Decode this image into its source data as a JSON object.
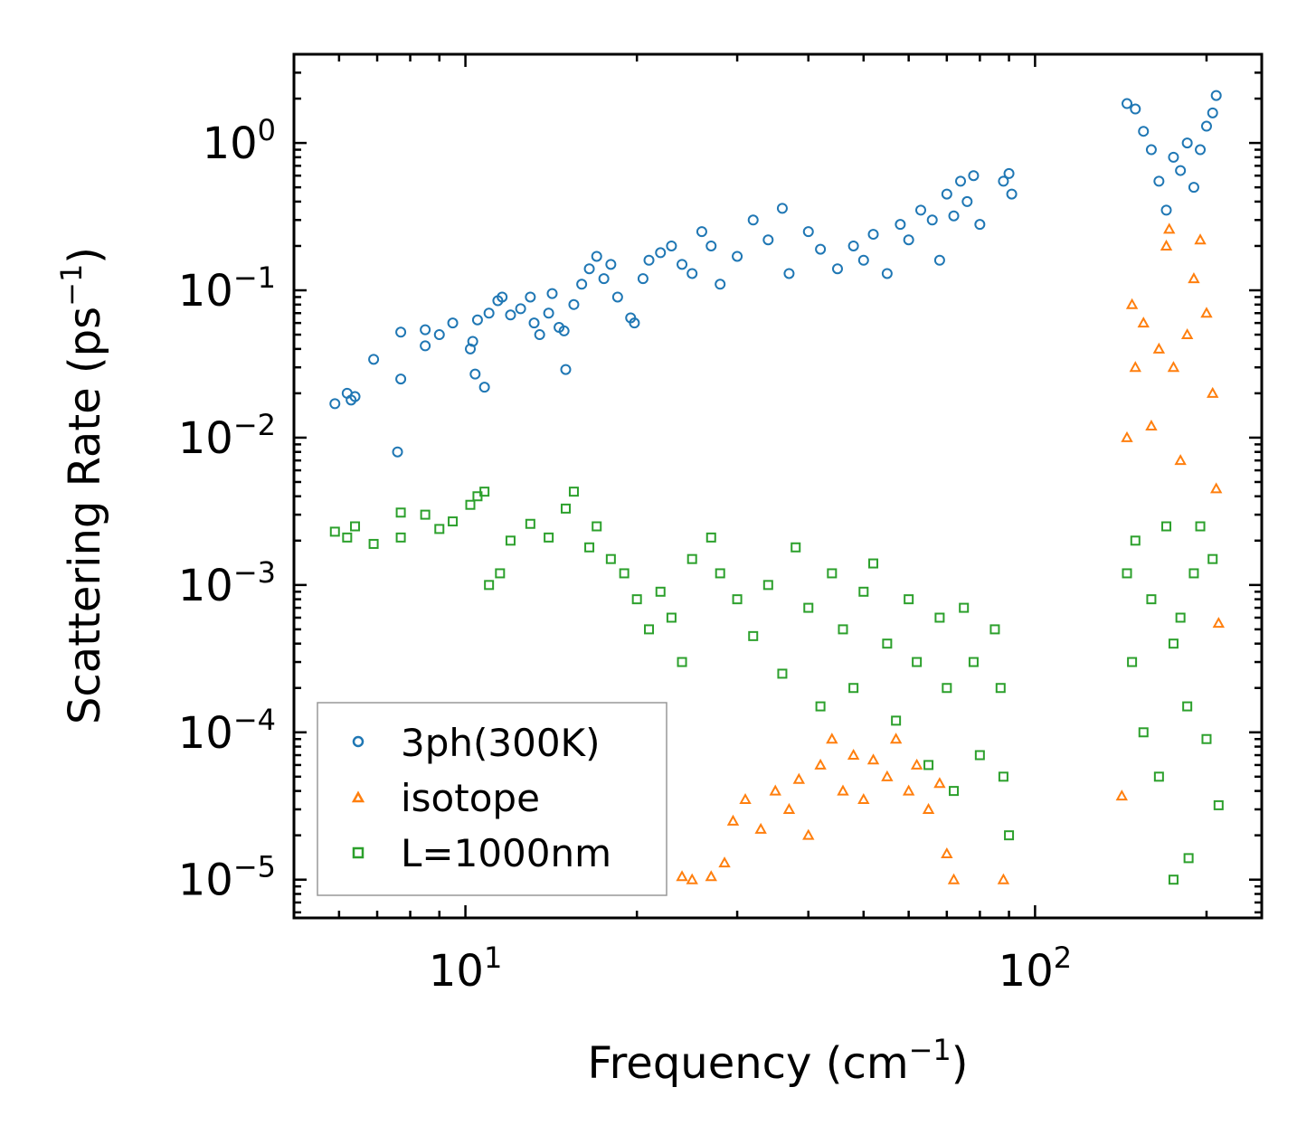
{
  "chart_data": {
    "type": "scatter",
    "title": "",
    "xlabel": "Frequency (cm",
    "xlabel_exp": "−1",
    "xlabel_end": ")",
    "ylabel": "Scattering Rate (ps",
    "ylabel_exp": "−1",
    "ylabel_end": ")",
    "xscale": "log",
    "yscale": "log",
    "xlim": [
      5.0,
      250.0
    ],
    "ylim": [
      5.5e-06,
      4.0
    ],
    "x_ticks": [
      {
        "value": 10,
        "base": "10",
        "exp": "1"
      },
      {
        "value": 100,
        "base": "10",
        "exp": "2"
      }
    ],
    "y_ticks": [
      {
        "value": 1,
        "base": "10",
        "exp": "0"
      },
      {
        "value": 0.1,
        "base": "10",
        "exp": "−1"
      },
      {
        "value": 0.01,
        "base": "10",
        "exp": "−2"
      },
      {
        "value": 0.001,
        "base": "10",
        "exp": "−3"
      },
      {
        "value": 0.0001,
        "base": "10",
        "exp": "−4"
      },
      {
        "value": 1e-05,
        "base": "10",
        "exp": "−5"
      }
    ],
    "grid": false,
    "legend_position": "lower-left",
    "series": [
      {
        "name": "3ph(300K)",
        "marker": "circle",
        "color": "#1f77b4",
        "points": [
          [
            5.9,
            0.017
          ],
          [
            6.2,
            0.02
          ],
          [
            6.3,
            0.018
          ],
          [
            6.4,
            0.019
          ],
          [
            6.9,
            0.034
          ],
          [
            7.7,
            0.052
          ],
          [
            7.7,
            0.025
          ],
          [
            7.6,
            0.008
          ],
          [
            8.5,
            0.054
          ],
          [
            8.5,
            0.042
          ],
          [
            9.0,
            0.05
          ],
          [
            9.5,
            0.06
          ],
          [
            10.2,
            0.04
          ],
          [
            10.3,
            0.045
          ],
          [
            10.4,
            0.027
          ],
          [
            10.8,
            0.022
          ],
          [
            10.5,
            0.063
          ],
          [
            11.0,
            0.07
          ],
          [
            11.4,
            0.085
          ],
          [
            11.6,
            0.09
          ],
          [
            12.0,
            0.068
          ],
          [
            12.5,
            0.075
          ],
          [
            13.0,
            0.09
          ],
          [
            13.2,
            0.06
          ],
          [
            13.5,
            0.05
          ],
          [
            14.0,
            0.07
          ],
          [
            14.2,
            0.095
          ],
          [
            14.6,
            0.056
          ],
          [
            14.9,
            0.053
          ],
          [
            15.0,
            0.029
          ],
          [
            15.5,
            0.08
          ],
          [
            16.0,
            0.11
          ],
          [
            16.5,
            0.14
          ],
          [
            17.0,
            0.17
          ],
          [
            17.5,
            0.12
          ],
          [
            18.0,
            0.15
          ],
          [
            18.5,
            0.09
          ],
          [
            19.5,
            0.065
          ],
          [
            19.8,
            0.06
          ],
          [
            20.5,
            0.12
          ],
          [
            21.0,
            0.16
          ],
          [
            22.0,
            0.18
          ],
          [
            23.0,
            0.2
          ],
          [
            24.0,
            0.15
          ],
          [
            25.0,
            0.13
          ],
          [
            26.0,
            0.25
          ],
          [
            27.0,
            0.2
          ],
          [
            28.0,
            0.11
          ],
          [
            30.0,
            0.17
          ],
          [
            32.0,
            0.3
          ],
          [
            34.0,
            0.22
          ],
          [
            36.0,
            0.36
          ],
          [
            37.0,
            0.13
          ],
          [
            40.0,
            0.25
          ],
          [
            42.0,
            0.19
          ],
          [
            45.0,
            0.14
          ],
          [
            48.0,
            0.2
          ],
          [
            50.0,
            0.16
          ],
          [
            52.0,
            0.24
          ],
          [
            55.0,
            0.13
          ],
          [
            58.0,
            0.28
          ],
          [
            60.0,
            0.22
          ],
          [
            63.0,
            0.35
          ],
          [
            66.0,
            0.3
          ],
          [
            68.0,
            0.16
          ],
          [
            70.0,
            0.45
          ],
          [
            72.0,
            0.32
          ],
          [
            74.0,
            0.55
          ],
          [
            76.0,
            0.4
          ],
          [
            78.0,
            0.6
          ],
          [
            80.0,
            0.28
          ],
          [
            88.0,
            0.55
          ],
          [
            90.0,
            0.62
          ],
          [
            91.0,
            0.45
          ],
          [
            145.0,
            1.85
          ],
          [
            150.0,
            1.7
          ],
          [
            155.0,
            1.2
          ],
          [
            160.0,
            0.9
          ],
          [
            165.0,
            0.55
          ],
          [
            170.0,
            0.35
          ],
          [
            175.0,
            0.8
          ],
          [
            180.0,
            0.65
          ],
          [
            185.0,
            1.0
          ],
          [
            190.0,
            0.5
          ],
          [
            195.0,
            0.9
          ],
          [
            200.0,
            1.3
          ],
          [
            205.0,
            1.6
          ],
          [
            208.0,
            2.1
          ]
        ]
      },
      {
        "name": "isotope",
        "marker": "triangle",
        "color": "#ff7f0e",
        "points": [
          [
            24.0,
            1.05e-05
          ],
          [
            25.0,
            1e-05
          ],
          [
            27.0,
            1.05e-05
          ],
          [
            28.5,
            1.3e-05
          ],
          [
            29.5,
            2.5e-05
          ],
          [
            31.0,
            3.5e-05
          ],
          [
            33.0,
            2.2e-05
          ],
          [
            35.0,
            4e-05
          ],
          [
            37.0,
            3e-05
          ],
          [
            38.5,
            4.8e-05
          ],
          [
            40.0,
            2e-05
          ],
          [
            42.0,
            6e-05
          ],
          [
            44.0,
            9e-05
          ],
          [
            46.0,
            4e-05
          ],
          [
            48.0,
            7e-05
          ],
          [
            50.0,
            3.5e-05
          ],
          [
            52.0,
            6.5e-05
          ],
          [
            55.0,
            5e-05
          ],
          [
            57.0,
            9e-05
          ],
          [
            60.0,
            4e-05
          ],
          [
            62.0,
            6e-05
          ],
          [
            65.0,
            3e-05
          ],
          [
            68.0,
            4.5e-05
          ],
          [
            70.0,
            1.5e-05
          ],
          [
            72.0,
            1e-05
          ],
          [
            88.0,
            1e-05
          ],
          [
            142.0,
            3.7e-05
          ],
          [
            145.0,
            0.01
          ],
          [
            148.0,
            0.08
          ],
          [
            150.0,
            0.03
          ],
          [
            155.0,
            0.06
          ],
          [
            160.0,
            0.012
          ],
          [
            165.0,
            0.04
          ],
          [
            170.0,
            0.2
          ],
          [
            172.0,
            0.26
          ],
          [
            175.0,
            0.03
          ],
          [
            180.0,
            0.007
          ],
          [
            185.0,
            0.05
          ],
          [
            190.0,
            0.12
          ],
          [
            195.0,
            0.22
          ],
          [
            200.0,
            0.07
          ],
          [
            205.0,
            0.02
          ],
          [
            208.0,
            0.0045
          ],
          [
            210.0,
            0.00055
          ]
        ]
      },
      {
        "name": "L=1000nm",
        "marker": "square",
        "color": "#2ca02c",
        "points": [
          [
            5.9,
            0.0023
          ],
          [
            6.2,
            0.0021
          ],
          [
            6.4,
            0.0025
          ],
          [
            6.9,
            0.0019
          ],
          [
            7.7,
            0.0031
          ],
          [
            7.7,
            0.0021
          ],
          [
            8.5,
            0.003
          ],
          [
            9.0,
            0.0024
          ],
          [
            9.5,
            0.0027
          ],
          [
            10.2,
            0.0035
          ],
          [
            10.5,
            0.004
          ],
          [
            10.8,
            0.0043
          ],
          [
            11.0,
            0.001
          ],
          [
            11.5,
            0.0012
          ],
          [
            12.0,
            0.002
          ],
          [
            13.0,
            0.0026
          ],
          [
            14.0,
            0.0021
          ],
          [
            15.0,
            0.0033
          ],
          [
            15.5,
            0.0043
          ],
          [
            16.5,
            0.0018
          ],
          [
            17.0,
            0.0025
          ],
          [
            18.0,
            0.0015
          ],
          [
            19.0,
            0.0012
          ],
          [
            20.0,
            0.0008
          ],
          [
            21.0,
            0.0005
          ],
          [
            22.0,
            0.0009
          ],
          [
            23.0,
            0.0006
          ],
          [
            24.0,
            0.0003
          ],
          [
            25.0,
            0.0015
          ],
          [
            27.0,
            0.0021
          ],
          [
            28.0,
            0.0012
          ],
          [
            30.0,
            0.0008
          ],
          [
            32.0,
            0.00045
          ],
          [
            34.0,
            0.001
          ],
          [
            36.0,
            0.00025
          ],
          [
            38.0,
            0.0018
          ],
          [
            40.0,
            0.0007
          ],
          [
            42.0,
            0.00015
          ],
          [
            44.0,
            0.0012
          ],
          [
            46.0,
            0.0005
          ],
          [
            48.0,
            0.0002
          ],
          [
            50.0,
            0.0009
          ],
          [
            52.0,
            0.0014
          ],
          [
            55.0,
            0.0004
          ],
          [
            57.0,
            0.00012
          ],
          [
            60.0,
            0.0008
          ],
          [
            62.0,
            0.0003
          ],
          [
            65.0,
            6e-05
          ],
          [
            68.0,
            0.0006
          ],
          [
            70.0,
            0.0002
          ],
          [
            72.0,
            4e-05
          ],
          [
            75.0,
            0.0007
          ],
          [
            78.0,
            0.0003
          ],
          [
            80.0,
            7e-05
          ],
          [
            85.0,
            0.0005
          ],
          [
            87.0,
            0.0002
          ],
          [
            88.0,
            5e-05
          ],
          [
            90.0,
            2e-05
          ],
          [
            145.0,
            0.0012
          ],
          [
            148.0,
            0.0003
          ],
          [
            150.0,
            0.002
          ],
          [
            155.0,
            0.0001
          ],
          [
            160.0,
            0.0008
          ],
          [
            165.0,
            5e-05
          ],
          [
            170.0,
            0.0025
          ],
          [
            175.0,
            0.0004
          ],
          [
            180.0,
            0.0006
          ],
          [
            185.0,
            0.00015
          ],
          [
            190.0,
            0.0012
          ],
          [
            195.0,
            0.0025
          ],
          [
            200.0,
            9e-05
          ],
          [
            205.0,
            0.0015
          ],
          [
            210.0,
            3.2e-05
          ],
          [
            175.0,
            1e-05
          ],
          [
            186.0,
            1.4e-05
          ]
        ]
      }
    ]
  }
}
